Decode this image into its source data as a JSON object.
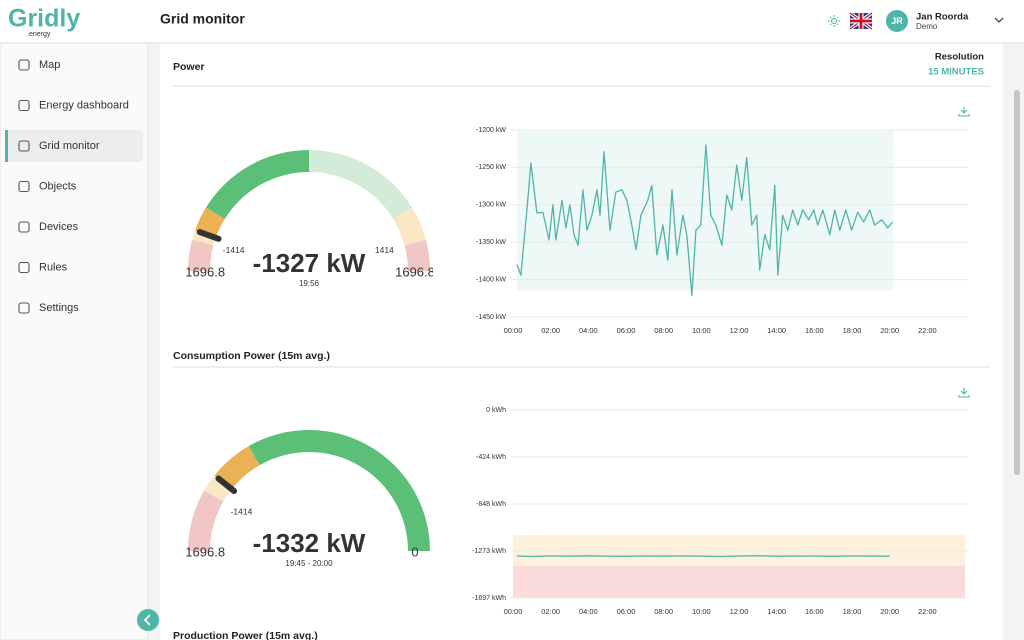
{
  "header": {
    "logo": "Gridly",
    "logo_suffix": ".energy",
    "title": "Grid monitor",
    "user": {
      "initials": "JR",
      "name": "Jan Roorda",
      "role": "Demo"
    }
  },
  "sidebar": {
    "items": [
      {
        "label": "Map"
      },
      {
        "label": "Energy dashboard"
      },
      {
        "label": "Grid monitor",
        "active": true
      },
      {
        "label": "Objects"
      },
      {
        "label": "Devices"
      },
      {
        "label": "Rules"
      },
      {
        "label": "Settings"
      }
    ]
  },
  "panels": [
    {
      "title": "Power",
      "resolution_label": "Resolution",
      "resolution": "15 MINUTES",
      "gauge": {
        "lim": [
          -1696.8,
          1696.8
        ],
        "ticks": [
          -1696.8,
          -1414,
          1414,
          1696.8
        ],
        "value": -1327,
        "value_label": "-1327 kW",
        "time": "19:56",
        "zones": [
          {
            "from": -1696.8,
            "to": -1414,
            "color": "#f2c6c4"
          },
          {
            "from": -1414,
            "to": -1327,
            "color": "#fbe6c6"
          },
          {
            "from": -1327,
            "to": -1100,
            "color": "#ebb255"
          },
          {
            "from": -1100,
            "to": 0,
            "color": "#5cbf78"
          },
          {
            "from": 0,
            "to": 1100,
            "color": "#d3ecd8"
          },
          {
            "from": 1100,
            "to": 1414,
            "color": "#fbe6c6"
          },
          {
            "from": 1414,
            "to": 1696.8,
            "color": "#f2c6c4"
          }
        ]
      },
      "chart": {
        "type": "line",
        "color": "#4fb5a8",
        "xlim": [
          0,
          24
        ],
        "ylim": [
          -1450,
          -1200
        ],
        "xticks": [
          {
            "value": 0,
            "label": "00:00"
          },
          {
            "value": 2,
            "label": "02:00"
          },
          {
            "value": 4,
            "label": "04:00"
          },
          {
            "value": 6,
            "label": "06:00"
          },
          {
            "value": 8,
            "label": "08:00"
          },
          {
            "value": 10,
            "label": "10:00"
          },
          {
            "value": 12,
            "label": "12:00"
          },
          {
            "value": 14,
            "label": "14:00"
          },
          {
            "value": 16,
            "label": "16:00"
          },
          {
            "value": 18,
            "label": "18:00"
          },
          {
            "value": 20,
            "label": "20:00"
          },
          {
            "value": 22,
            "label": "22:00"
          }
        ],
        "yticks": [
          {
            "value": -1200,
            "label": "-1200 kW"
          },
          {
            "value": -1250,
            "label": "-1250 kW"
          },
          {
            "value": -1300,
            "label": "-1300 kW"
          },
          {
            "value": -1350,
            "label": "-1350 kW"
          },
          {
            "value": -1400,
            "label": "-1400 kW"
          },
          {
            "value": -1450,
            "label": "-1450 kW"
          }
        ],
        "bands": [
          {
            "x": [
              0.2,
              20.2
            ],
            "y": [
              -1414,
              -1200
            ],
            "color": "#eef8f6"
          }
        ],
        "x": [
          0.21,
          0.42,
          0.74,
          0.95,
          1.27,
          1.59,
          1.91,
          2.12,
          2.28,
          2.6,
          2.81,
          3.02,
          3.24,
          3.45,
          3.71,
          3.93,
          4.19,
          4.46,
          4.62,
          4.83,
          5.15,
          5.46,
          5.78,
          6.05,
          6.31,
          6.53,
          6.79,
          7.16,
          7.37,
          7.64,
          7.96,
          8.22,
          8.44,
          8.7,
          9.02,
          9.23,
          9.5,
          9.71,
          9.97,
          10.24,
          10.5,
          10.77,
          11.09,
          11.35,
          11.62,
          11.88,
          12.15,
          12.41,
          12.68,
          12.94,
          13.1,
          13.37,
          13.63,
          13.9,
          14.06,
          14.32,
          14.59,
          14.85,
          15.12,
          15.38,
          15.7,
          15.97,
          16.18,
          16.45,
          16.82,
          17.08,
          17.35,
          17.67,
          17.98,
          18.3,
          18.62,
          18.94,
          19.2,
          19.58,
          19.89,
          20.16
        ],
        "values": [
          -1380,
          -1394,
          -1307,
          -1244,
          -1311,
          -1310,
          -1347,
          -1300,
          -1347,
          -1294,
          -1331,
          -1300,
          -1340,
          -1354,
          -1280,
          -1334,
          -1314,
          -1280,
          -1314,
          -1229,
          -1334,
          -1283,
          -1280,
          -1294,
          -1327,
          -1360,
          -1314,
          -1294,
          -1274,
          -1367,
          -1327,
          -1374,
          -1280,
          -1367,
          -1314,
          -1340,
          -1421,
          -1334,
          -1327,
          -1220,
          -1314,
          -1327,
          -1354,
          -1287,
          -1307,
          -1247,
          -1294,
          -1237,
          -1327,
          -1314,
          -1387,
          -1340,
          -1360,
          -1274,
          -1394,
          -1314,
          -1334,
          -1307,
          -1327,
          -1307,
          -1320,
          -1307,
          -1327,
          -1307,
          -1340,
          -1307,
          -1334,
          -1307,
          -1334,
          -1310,
          -1323,
          -1307,
          -1327,
          -1320,
          -1331,
          -1323
        ]
      }
    },
    {
      "title": "Consumption Power (15m avg.)",
      "gauge": {
        "lim": [
          -1696.8,
          0
        ],
        "ticks": [
          -1696.8,
          -1414,
          0
        ],
        "value": -1332,
        "value_label": "-1332 kW",
        "time": "19:45 - 20:00",
        "zones": [
          {
            "from": -1696.8,
            "to": -1414,
            "color": "#f2c6c4"
          },
          {
            "from": -1414,
            "to": -1332,
            "color": "#fbe6c6"
          },
          {
            "from": -1332,
            "to": -1130,
            "color": "#ebb255"
          },
          {
            "from": -1130,
            "to": 0,
            "color": "#5cbf78"
          }
        ]
      },
      "chart": {
        "type": "line",
        "color": "#4fb5a8",
        "xlim": [
          0,
          24
        ],
        "ylim": [
          -1697,
          0
        ],
        "xticks": [
          {
            "value": 0,
            "label": "00:00"
          },
          {
            "value": 2,
            "label": "02:00"
          },
          {
            "value": 4,
            "label": "04:00"
          },
          {
            "value": 6,
            "label": "06:00"
          },
          {
            "value": 8,
            "label": "08:00"
          },
          {
            "value": 10,
            "label": "10:00"
          },
          {
            "value": 12,
            "label": "12:00"
          },
          {
            "value": 14,
            "label": "14:00"
          },
          {
            "value": 16,
            "label": "16:00"
          },
          {
            "value": 18,
            "label": "18:00"
          },
          {
            "value": 20,
            "label": "20:00"
          },
          {
            "value": 22,
            "label": "22:00"
          }
        ],
        "yticks": [
          {
            "value": 0,
            "label": "0 kWh"
          },
          {
            "value": -424,
            "label": "-424 kWh"
          },
          {
            "value": -848,
            "label": "-848 kWh"
          },
          {
            "value": -1273,
            "label": "-1273 kWh"
          },
          {
            "value": -1697,
            "label": "-1697 kWh"
          }
        ],
        "bands": [
          {
            "x": [
              0,
              24
            ],
            "y": [
              -1408,
              -1128
            ],
            "color": "#fdf1dc"
          },
          {
            "x": [
              0,
              24
            ],
            "y": [
              -1697,
              -1408
            ],
            "color": "#fadadb"
          }
        ],
        "x": [
          0.2,
          1,
          2,
          3,
          4,
          5,
          6,
          7,
          8,
          9,
          10,
          11,
          12,
          13,
          14,
          15,
          16,
          17,
          18,
          19,
          20
        ],
        "values": [
          -1318,
          -1322,
          -1317,
          -1320,
          -1316,
          -1319,
          -1321,
          -1318,
          -1320,
          -1317,
          -1319,
          -1322,
          -1318,
          -1316,
          -1320,
          -1319,
          -1318,
          -1321,
          -1317,
          -1319,
          -1320
        ]
      }
    },
    {
      "title": "Production Power (15m avg.)"
    }
  ]
}
